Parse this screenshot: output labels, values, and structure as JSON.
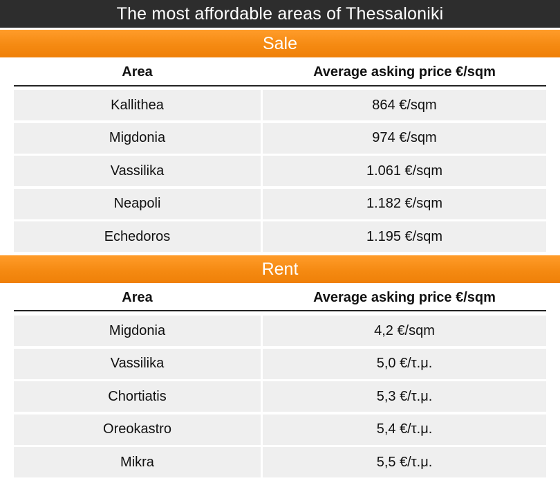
{
  "title": "The most affordable areas of Thessaloniki",
  "sale": {
    "label": "Sale",
    "headers": {
      "area": "Area",
      "price": "Average asking price €/sqm"
    },
    "rows": [
      {
        "area": "Kallithea",
        "price": "864 €/sqm"
      },
      {
        "area": "Migdonia",
        "price": "974 €/sqm"
      },
      {
        "area": "Vassilika",
        "price": "1.061 €/sqm"
      },
      {
        "area": "Neapoli",
        "price": "1.182 €/sqm"
      },
      {
        "area": "Echedoros",
        "price": "1.195 €/sqm"
      }
    ]
  },
  "rent": {
    "label": "Rent",
    "headers": {
      "area": "Area",
      "price": "Average asking price €/sqm"
    },
    "rows": [
      {
        "area": "Migdonia",
        "price": "4,2 €/sqm"
      },
      {
        "area": "Vassilika",
        "price": "5,0 €/τ.μ."
      },
      {
        "area": "Chortiatis",
        "price": "5,3 €/τ.μ."
      },
      {
        "area": "Oreokastro",
        "price": "5,4 €/τ.μ."
      },
      {
        "area": "Mikra",
        "price": "5,5 €/τ.μ."
      }
    ]
  },
  "colors": {
    "title_bg": "#2d2d2d",
    "accent": "#f58a12",
    "row_bg": "#efefef"
  }
}
